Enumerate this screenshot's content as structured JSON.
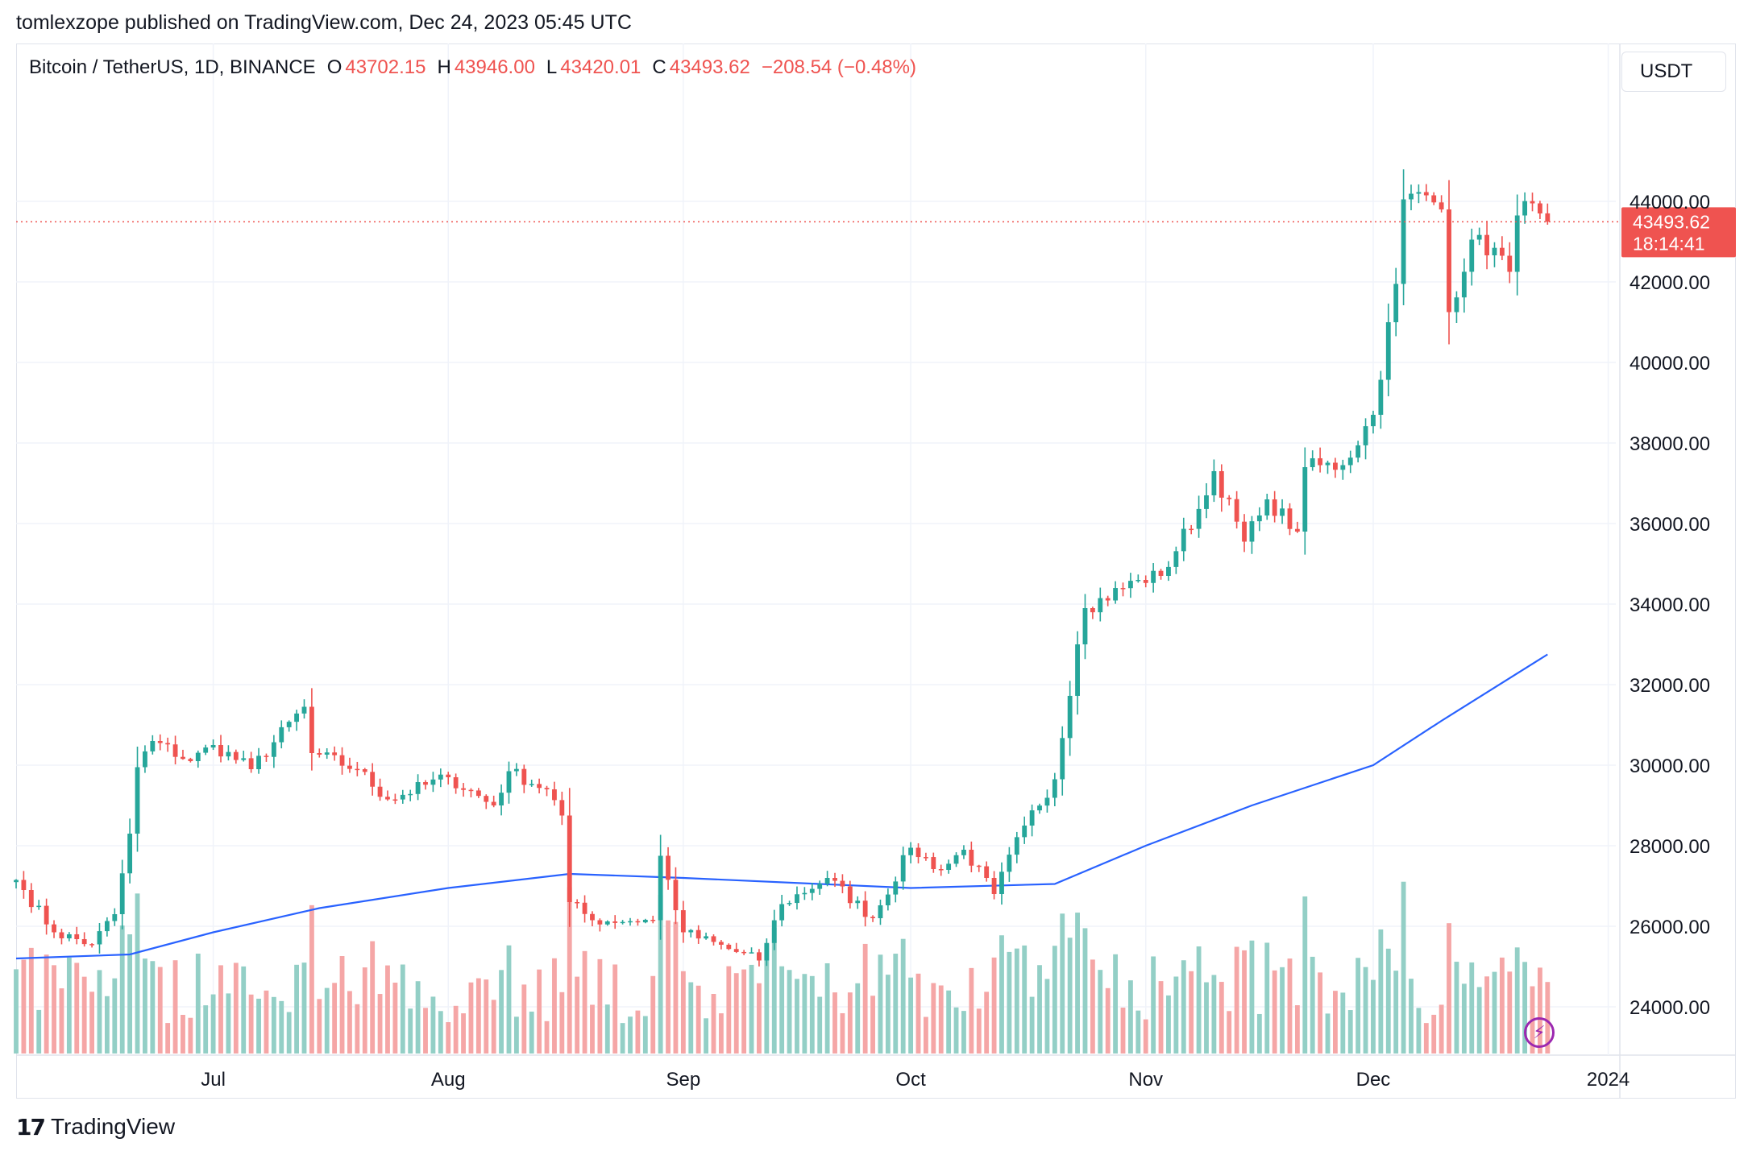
{
  "header": {
    "publisher_line": "tomlexzope published on TradingView.com, Dec 24, 2023 05:45 UTC"
  },
  "legend": {
    "symbol": "Bitcoin / TetherUS, 1D, BINANCE",
    "o_label": "O",
    "o_value": "43702.15",
    "h_label": "H",
    "h_value": "43946.00",
    "l_label": "L",
    "l_value": "43420.01",
    "c_label": "C",
    "c_value": "43493.62",
    "change": "−208.54 (−0.48%)"
  },
  "currency_button": "USDT",
  "last_price": {
    "value": "43493.62",
    "countdown": "18:14:41"
  },
  "branding": {
    "logo_mark": "17",
    "logo_text": "TradingView"
  },
  "icons": {
    "lightning": "lightning-icon"
  },
  "colors": {
    "up": "#26a69a",
    "down": "#ef5350",
    "up_volume": "#93cfc6",
    "down_volume": "#f5a6a6",
    "ma_line": "#2962ff",
    "price_label_bg": "#ef5350",
    "grid": "#f0f3fa"
  },
  "chart_data": {
    "type": "candlestick",
    "title": "",
    "price_axis": {
      "ticks": [
        44000,
        42000,
        40000,
        38000,
        36000,
        34000,
        32000,
        30000,
        28000,
        26000,
        24000
      ],
      "tick_labels": [
        "44000.00",
        "42000.00",
        "40000.00",
        "38000.00",
        "36000.00",
        "34000.00",
        "32000.00",
        "30000.00",
        "28000.00",
        "26000.00",
        "24000.00"
      ],
      "range": [
        22800,
        46800
      ]
    },
    "time_axis": {
      "labels": [
        "Jul",
        "Aug",
        "Sep",
        "Oct",
        "Nov",
        "Dec",
        "2024"
      ],
      "label_dates": [
        "2023-07-01",
        "2023-08-01",
        "2023-09-01",
        "2023-10-01",
        "2023-11-01",
        "2023-12-01",
        "2024-01-01"
      ],
      "range": [
        "2023-06-05",
        "2024-01-02"
      ]
    },
    "candle_dates": {
      "first": "2023-06-05",
      "last": "2023-12-24"
    },
    "close_anchors": [
      {
        "date": "2023-06-05",
        "close": 27150
      },
      {
        "date": "2023-06-06",
        "close": 26900
      },
      {
        "date": "2023-06-10",
        "close": 25850
      },
      {
        "date": "2023-06-15",
        "close": 25550
      },
      {
        "date": "2023-06-18",
        "close": 26300
      },
      {
        "date": "2023-06-20",
        "close": 28300
      },
      {
        "date": "2023-06-21",
        "close": 29950
      },
      {
        "date": "2023-06-23",
        "close": 30600
      },
      {
        "date": "2023-06-28",
        "close": 30100
      },
      {
        "date": "2023-07-01",
        "close": 30500
      },
      {
        "date": "2023-07-06",
        "close": 29900
      },
      {
        "date": "2023-07-13",
        "close": 31450
      },
      {
        "date": "2023-07-14",
        "close": 30300
      },
      {
        "date": "2023-07-20",
        "close": 29900
      },
      {
        "date": "2023-07-24",
        "close": 29150
      },
      {
        "date": "2023-08-01",
        "close": 29700
      },
      {
        "date": "2023-08-07",
        "close": 29000
      },
      {
        "date": "2023-08-09",
        "close": 29850
      },
      {
        "date": "2023-08-14",
        "close": 29400
      },
      {
        "date": "2023-08-16",
        "close": 28750
      },
      {
        "date": "2023-08-17",
        "close": 26600
      },
      {
        "date": "2023-08-20",
        "close": 26150
      },
      {
        "date": "2023-08-28",
        "close": 26150
      },
      {
        "date": "2023-08-29",
        "close": 27750
      },
      {
        "date": "2023-09-01",
        "close": 25850
      },
      {
        "date": "2023-09-11",
        "close": 25150
      },
      {
        "date": "2023-09-14",
        "close": 26550
      },
      {
        "date": "2023-09-20",
        "close": 27200
      },
      {
        "date": "2023-09-26",
        "close": 26200
      },
      {
        "date": "2023-10-01",
        "close": 27950
      },
      {
        "date": "2023-10-05",
        "close": 27400
      },
      {
        "date": "2023-10-08",
        "close": 27900
      },
      {
        "date": "2023-10-12",
        "close": 26800
      },
      {
        "date": "2023-10-16",
        "close": 28500
      },
      {
        "date": "2023-10-20",
        "close": 29650
      },
      {
        "date": "2023-10-23",
        "close": 33000
      },
      {
        "date": "2023-10-24",
        "close": 33900
      },
      {
        "date": "2023-10-31",
        "close": 34600
      },
      {
        "date": "2023-11-03",
        "close": 34700
      },
      {
        "date": "2023-11-09",
        "close": 36700
      },
      {
        "date": "2023-11-10",
        "close": 37300
      },
      {
        "date": "2023-11-14",
        "close": 35550
      },
      {
        "date": "2023-11-16",
        "close": 36200
      },
      {
        "date": "2023-11-17",
        "close": 36600
      },
      {
        "date": "2023-11-21",
        "close": 35800
      },
      {
        "date": "2023-11-22",
        "close": 37400
      },
      {
        "date": "2023-11-27",
        "close": 37450
      },
      {
        "date": "2023-12-01",
        "close": 38700
      },
      {
        "date": "2023-12-04",
        "close": 41950
      },
      {
        "date": "2023-12-05",
        "close": 44050
      },
      {
        "date": "2023-12-08",
        "close": 44150
      },
      {
        "date": "2023-12-10",
        "close": 43800
      },
      {
        "date": "2023-12-11",
        "close": 41250
      },
      {
        "date": "2023-12-14",
        "close": 43050
      },
      {
        "date": "2023-12-18",
        "close": 42650
      },
      {
        "date": "2023-12-19",
        "close": 42250
      },
      {
        "date": "2023-12-20",
        "close": 43650
      },
      {
        "date": "2023-12-22",
        "close": 43950
      },
      {
        "date": "2023-12-23",
        "close": 43700
      },
      {
        "date": "2023-12-24",
        "close": 43493.62
      }
    ],
    "last_candle": {
      "date": "2023-12-24",
      "open": 43702.15,
      "high": 43946.0,
      "low": 43420.01,
      "close": 43493.62
    },
    "moving_average": [
      {
        "date": "2023-06-05",
        "value": 25200
      },
      {
        "date": "2023-06-20",
        "value": 25300
      },
      {
        "date": "2023-07-01",
        "value": 25850
      },
      {
        "date": "2023-07-15",
        "value": 26450
      },
      {
        "date": "2023-08-01",
        "value": 26950
      },
      {
        "date": "2023-08-17",
        "value": 27300
      },
      {
        "date": "2023-09-01",
        "value": 27200
      },
      {
        "date": "2023-10-01",
        "value": 26950
      },
      {
        "date": "2023-10-20",
        "value": 27050
      },
      {
        "date": "2023-11-01",
        "value": 28000
      },
      {
        "date": "2023-11-15",
        "value": 29000
      },
      {
        "date": "2023-12-01",
        "value": 30000
      },
      {
        "date": "2023-12-10",
        "value": 31100
      },
      {
        "date": "2023-12-24",
        "value": 32750
      }
    ],
    "volume": {
      "scale": "relative",
      "max_index": 1.0
    },
    "last_price_line": 43493.62,
    "grid": true
  }
}
